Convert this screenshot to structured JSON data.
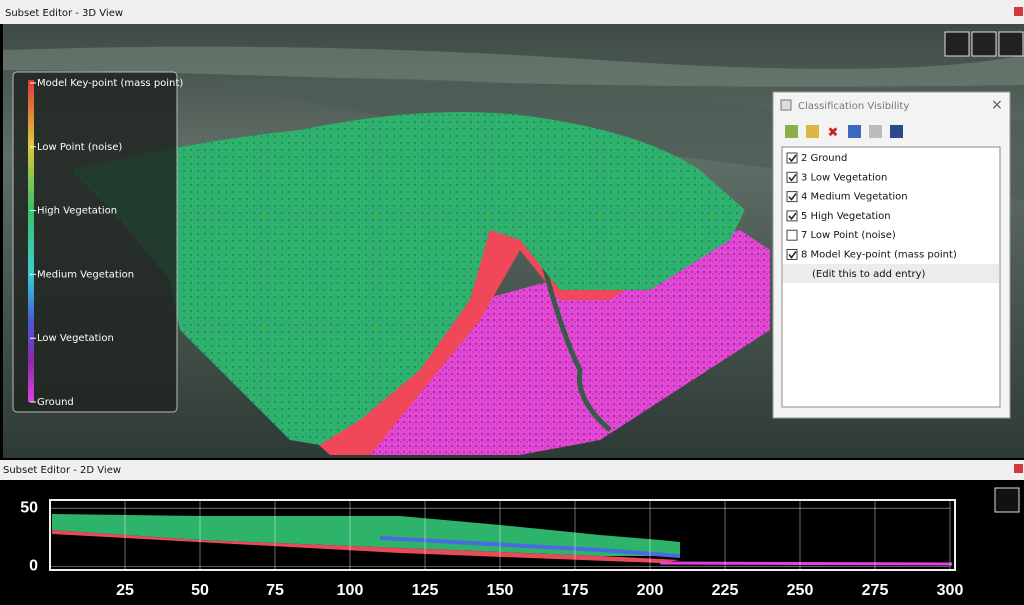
{
  "windows": {
    "view3d": {
      "title": "Subset Editor - 3D View"
    },
    "view2d": {
      "title": "Subset Editor - 2D View"
    }
  },
  "legend": {
    "labels": [
      "Model Key-point (mass point)",
      "Low Point (noise)",
      "High Vegetation",
      "Medium Vegetation",
      "Low Vegetation",
      "Ground"
    ]
  },
  "dialog": {
    "title": "Classification Visibility",
    "entries": [
      {
        "label": "2 Ground",
        "checked": true
      },
      {
        "label": "3 Low Vegetation",
        "checked": true
      },
      {
        "label": "4 Medium Vegetation",
        "checked": true
      },
      {
        "label": "5 High Vegetation",
        "checked": true
      },
      {
        "label": "7 Low Point (noise)",
        "checked": false
      },
      {
        "label": "8 Model Key-point (mass point)",
        "checked": true
      }
    ],
    "add_entry": "(Edit this to add entry)"
  },
  "profile": {
    "xlim": [
      0,
      300
    ],
    "xticks": [
      25,
      50,
      75,
      100,
      125,
      150,
      175,
      200,
      225,
      250,
      275,
      300
    ],
    "ylim": [
      -3,
      57
    ],
    "yticks": [
      0,
      50
    ]
  }
}
